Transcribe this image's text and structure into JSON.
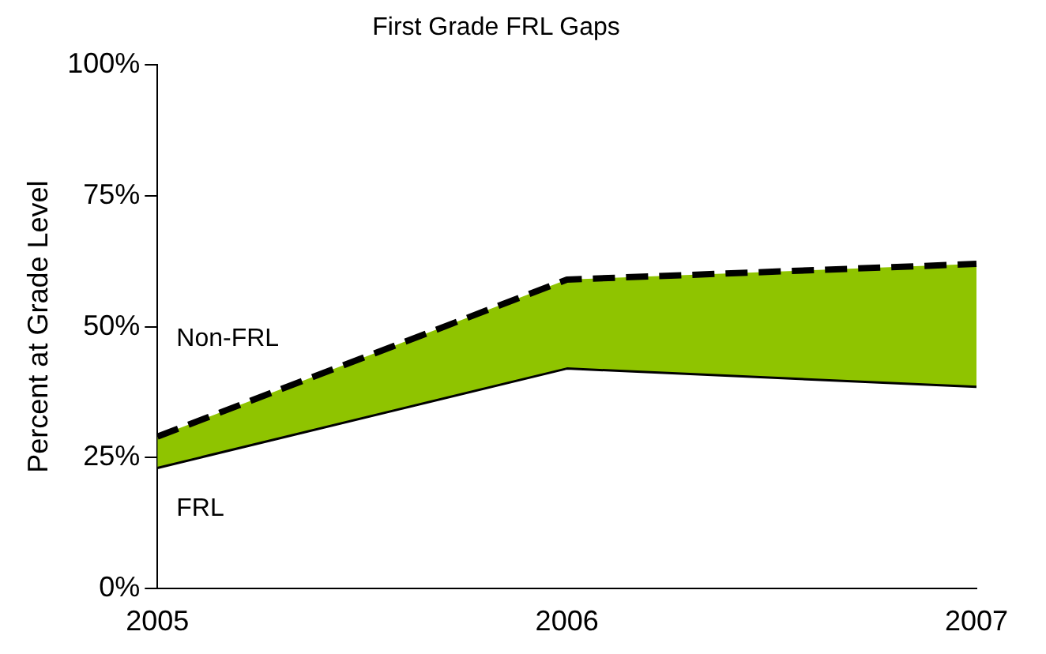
{
  "chart_data": {
    "type": "line",
    "title": "First Grade FRL Gaps",
    "ylabel": "Percent at Grade Level",
    "categories": [
      "2005",
      "2006",
      "2007"
    ],
    "series": [
      {
        "name": "FRL",
        "type": "line",
        "color": "#000000",
        "values": [
          23,
          42,
          38.5
        ]
      },
      {
        "name": "Non-FRL",
        "type": "area",
        "color": "#8fc400",
        "line_style": "dashed",
        "values": [
          29,
          59,
          62
        ]
      }
    ],
    "ylim": [
      0,
      100
    ],
    "yticks": [
      {
        "value": 0,
        "label": "0%"
      },
      {
        "value": 25,
        "label": "25%"
      },
      {
        "value": 50,
        "label": "50%"
      },
      {
        "value": 75,
        "label": "75%"
      },
      {
        "value": 100,
        "label": "100%"
      }
    ],
    "grid": false,
    "legend": false,
    "marker": "none"
  }
}
